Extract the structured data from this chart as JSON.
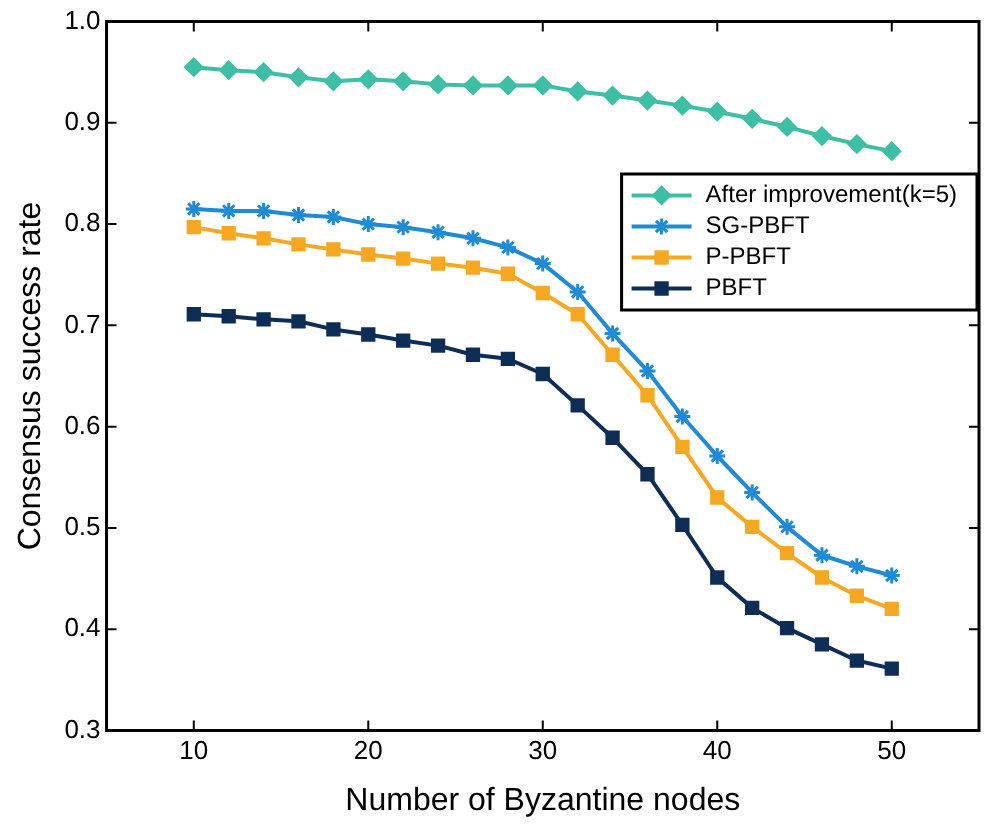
{
  "chart_data": {
    "type": "line",
    "xlabel": "Number of Byzantine nodes",
    "ylabel": "Consensus success rate",
    "x": [
      10,
      12,
      14,
      16,
      18,
      20,
      22,
      24,
      26,
      28,
      30,
      32,
      34,
      36,
      38,
      40,
      42,
      44,
      46,
      48,
      50
    ],
    "xlim": [
      5,
      55
    ],
    "xticks": [
      10,
      20,
      30,
      40,
      50
    ],
    "ylim": [
      0.3,
      1
    ],
    "yticks": [
      0.3,
      0.4,
      0.5,
      0.6,
      0.7,
      0.8,
      0.9,
      {
        "value": 1,
        "label": "1.0"
      }
    ],
    "grid": false,
    "legend": "right",
    "line_style": "solid",
    "series": [
      {
        "name": "After improvement(k=5)",
        "color": "#3dbfa6",
        "marker": "diamond",
        "values": [
          0.955,
          0.952,
          0.95,
          0.945,
          0.941,
          0.943,
          0.941,
          0.938,
          0.937,
          0.937,
          0.937,
          0.931,
          0.927,
          0.922,
          0.917,
          0.911,
          0.904,
          0.896,
          0.887,
          0.879,
          0.872
        ]
      },
      {
        "name": "SG-PBFT",
        "color": "#1f8ad6",
        "marker": "cross",
        "values": [
          0.815,
          0.813,
          0.813,
          0.809,
          0.807,
          0.8,
          0.797,
          0.792,
          0.786,
          0.777,
          0.761,
          0.733,
          0.692,
          0.655,
          0.61,
          0.571,
          0.535,
          0.501,
          0.473,
          0.462,
          0.453
        ]
      },
      {
        "name": "P-PBFT",
        "color": "#f6a823",
        "marker": "square",
        "values": [
          0.797,
          0.791,
          0.786,
          0.78,
          0.775,
          0.77,
          0.766,
          0.761,
          0.757,
          0.751,
          0.732,
          0.711,
          0.671,
          0.631,
          0.58,
          0.53,
          0.501,
          0.475,
          0.451,
          0.433,
          0.42
        ]
      },
      {
        "name": "PBFT",
        "color": "#0d2d57",
        "marker": "square",
        "values": [
          0.711,
          0.709,
          0.706,
          0.704,
          0.696,
          0.691,
          0.685,
          0.68,
          0.671,
          0.667,
          0.652,
          0.621,
          0.589,
          0.553,
          0.503,
          0.451,
          0.421,
          0.401,
          0.385,
          0.369,
          0.361
        ]
      }
    ]
  }
}
